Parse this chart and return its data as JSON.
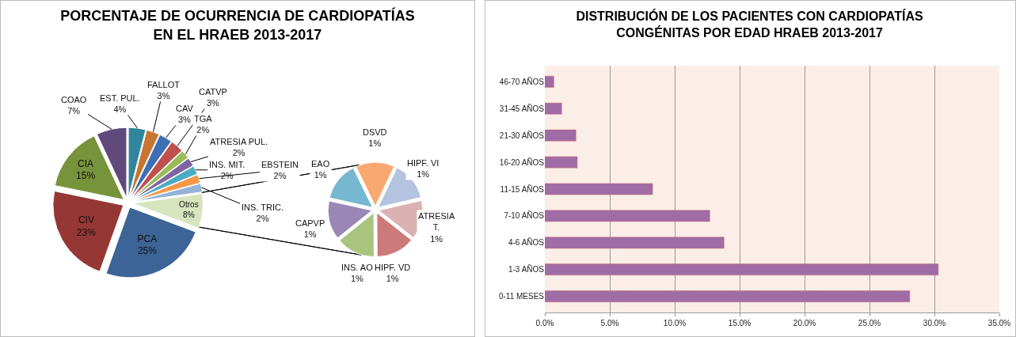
{
  "chart_data": [
    {
      "type": "pie",
      "title": "PORCENTAJE DE OCURRENCIA DE CARDIOPATÍAS\nEN EL HRAEB 2013-2017",
      "categories": [
        "Otros",
        "PCA",
        "CIV",
        "CIA",
        "COAO",
        "EST. PUL.",
        "FALLOT",
        "CAV",
        "CATVP",
        "TGA",
        "ATRESIA PUL.",
        "INS. MIT.",
        "EBSTEIN",
        "INS. TRIC."
      ],
      "values": [
        8,
        25,
        23,
        15,
        7,
        4,
        3,
        3,
        3,
        2,
        2,
        2,
        2,
        2
      ],
      "value_labels": [
        "8%",
        "25%",
        "23%",
        "15%",
        "7%",
        "4%",
        "3%",
        "3%",
        "3%",
        "2%",
        "2%",
        "2%",
        "2%",
        "2%"
      ],
      "colors": [
        "#d7e4bd",
        "#3c6496",
        "#953735",
        "#77933c",
        "#604a7b",
        "#31859c",
        "#c6742f",
        "#3e6fb5",
        "#c0504d",
        "#9bbb59",
        "#8064a2",
        "#4bacc6",
        "#f79646",
        "#95b3d7"
      ]
    },
    {
      "type": "pie",
      "categories": [
        "DSVD",
        "HIPF. VI",
        "ATRESIA T.",
        "HIPF. VD",
        "INS. AO",
        "CAPVP",
        "EAO"
      ],
      "values": [
        1,
        1,
        1,
        1,
        1,
        1,
        1
      ],
      "value_labels": [
        "1%",
        "1%",
        "1%",
        "1%",
        "1%",
        "1%",
        "1%"
      ],
      "colors": [
        "#f9a870",
        "#b3c3e0",
        "#dbb2b2",
        "#cd7a7a",
        "#a8c47f",
        "#9b87b6",
        "#76b8cf"
      ]
    },
    {
      "type": "bar",
      "orientation": "horizontal",
      "title": "DISTRIBUCIÓN DE LOS PACIENTES CON CARDIOPATÍAS\nCONGÉNITAS POR EDAD HRAEB 2013-2017",
      "categories": [
        "46-70 AÑOS",
        "31-45 AÑOS",
        "21-30 AÑOS",
        "16-20 AÑOS",
        "11-15 AÑOS",
        "7-10 AÑOS",
        "4-6 AÑOS",
        "1-3 AÑOS",
        "0-11 MESES"
      ],
      "values": [
        0.7,
        1.3,
        2.4,
        2.5,
        8.3,
        12.7,
        13.8,
        30.3,
        28.1
      ],
      "color": "#9f6ca6",
      "xlim": [
        0,
        35
      ],
      "xticks": [
        {
          "value": 0,
          "label": "0.0%"
        },
        {
          "value": 5,
          "label": "5.0%"
        },
        {
          "value": 10,
          "label": "10.0%"
        },
        {
          "value": 15,
          "label": "15.0%"
        },
        {
          "value": 20,
          "label": "20.0%"
        },
        {
          "value": 25,
          "label": "25.0%"
        },
        {
          "value": 30,
          "label": "30.0%"
        },
        {
          "value": 35,
          "label": "35.0%"
        }
      ],
      "grid": "x"
    }
  ]
}
